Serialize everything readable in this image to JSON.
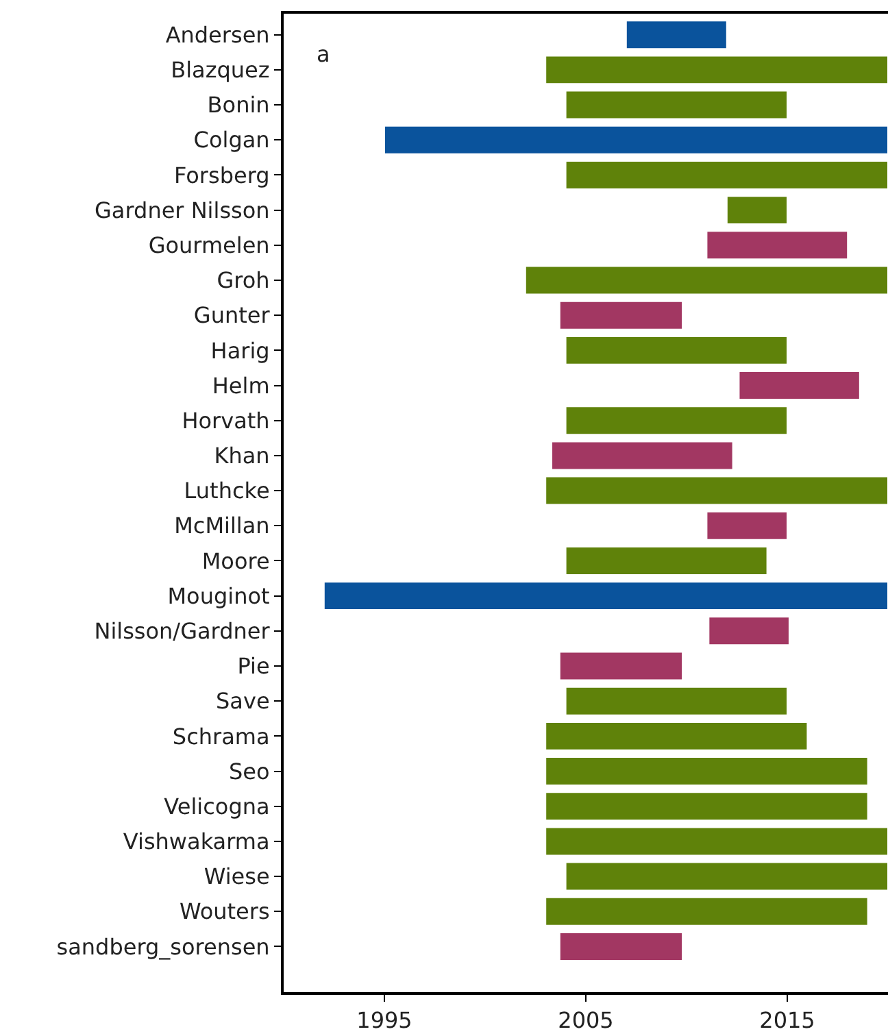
{
  "chart_data": {
    "type": "bar",
    "orientation": "horizontal",
    "categories": [
      "Andersen",
      "Blazquez",
      "Bonin",
      "Colgan",
      "Forsberg",
      "Gardner Nilsson",
      "Gourmelen",
      "Groh",
      "Gunter",
      "Harig",
      "Helm",
      "Horvath",
      "Khan",
      "Luthcke",
      "McMillan",
      "Moore",
      "Mouginot",
      "Nilsson/Gardner",
      "Pie",
      "Save",
      "Schrama",
      "Seo",
      "Velicogna",
      "Vishwakarma",
      "Wiese",
      "Wouters",
      "sandberg_sorensen"
    ],
    "base": [
      2007,
      2003,
      2004,
      1995,
      2004,
      2012,
      2011,
      2002,
      2003.7,
      2004,
      2012.6,
      2004,
      2003.3,
      2003,
      2011,
      2004,
      1992,
      2011.1,
      2003.7,
      2004,
      2003,
      2003,
      2003,
      2003,
      2004,
      2003,
      2003.7
    ],
    "values": [
      5,
      17,
      11,
      25,
      16,
      3,
      7,
      18,
      6.1,
      11,
      6,
      11,
      9,
      17,
      4,
      10,
      28,
      4,
      6.1,
      11,
      13,
      16,
      16,
      17,
      16,
      16,
      6.1
    ],
    "colors": [
      "#0a539c",
      "#5f820a",
      "#5f820a",
      "#0a539c",
      "#5f820a",
      "#5f820a",
      "#a23762",
      "#5f820a",
      "#a23762",
      "#5f820a",
      "#a23762",
      "#5f820a",
      "#a23762",
      "#5f820a",
      "#a23762",
      "#5f820a",
      "#0a539c",
      "#a23762",
      "#a23762",
      "#5f820a",
      "#5f820a",
      "#5f820a",
      "#5f820a",
      "#5f820a",
      "#5f820a",
      "#5f820a",
      "#a23762"
    ],
    "xlim": [
      1990,
      2020
    ],
    "xticks": [
      1995,
      2005,
      2015
    ],
    "annotations": [
      "a"
    ]
  }
}
